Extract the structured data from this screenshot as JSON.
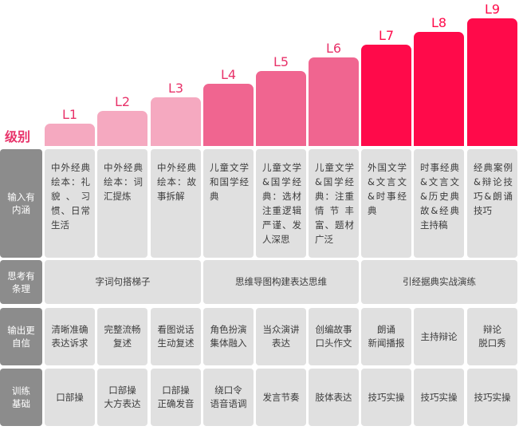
{
  "title": "级别",
  "levels": [
    {
      "label": "L1",
      "color": "#f5a9c0",
      "label_color": "#e8336a"
    },
    {
      "label": "L2",
      "color": "#f5a9c0",
      "label_color": "#e8336a"
    },
    {
      "label": "L3",
      "color": "#f5a9c0",
      "label_color": "#e8336a"
    },
    {
      "label": "L4",
      "color": "#f06590",
      "label_color": "#e8336a"
    },
    {
      "label": "L5",
      "color": "#f06590",
      "label_color": "#e8336a"
    },
    {
      "label": "L6",
      "color": "#f06590",
      "label_color": "#e8336a"
    },
    {
      "label": "L7",
      "color": "#ff0a4a",
      "label_color": "#ff0a4a"
    },
    {
      "label": "L8",
      "color": "#ff0a4a",
      "label_color": "#ff0a4a"
    },
    {
      "label": "L9",
      "color": "#ff0a4a",
      "label_color": "#ff0a4a"
    }
  ],
  "rows": {
    "input": {
      "header": "输入有\n内涵",
      "cells": [
        "中外经典绘本：礼貌、习惯、日常生活",
        "中外经典绘本：词汇提炼",
        "中外经典绘本：故事拆解",
        "儿童文学和国学经典",
        "儿童文学&国学经典：选材注重逻辑严谨、发人深思",
        "儿童文学&国学经典：注重情节丰富、题材广泛",
        "外国文学&文言文&时事经典",
        "时事经典&文言文&历史典故&经典主持稿",
        "经典案例&辩论技巧&朗诵技巧"
      ]
    },
    "thinking": {
      "header": "思考有\n条理",
      "cells": [
        "字词句搭梯子",
        "思维导图构建表达思维",
        "引经据典实战演练"
      ]
    },
    "output": {
      "header": "输出更\n自信",
      "cells": [
        "清晰准确\n表达诉求",
        "完整流畅\n复述",
        "看图说话\n生动复述",
        "角色扮演\n集体融入",
        "当众演讲\n表达",
        "创编故事\n口头作文",
        "朗诵\n新闻播报",
        "主持辩论",
        "辩论\n脱口秀"
      ]
    },
    "training": {
      "header": "训练\n基础",
      "cells": [
        "口部操",
        "口部操\n大方表达",
        "口部操\n正确发音",
        "绕口令\n语音语调",
        "发言节奏",
        "肢体表达",
        "技巧实操",
        "技巧实操",
        "技巧实操"
      ]
    }
  }
}
